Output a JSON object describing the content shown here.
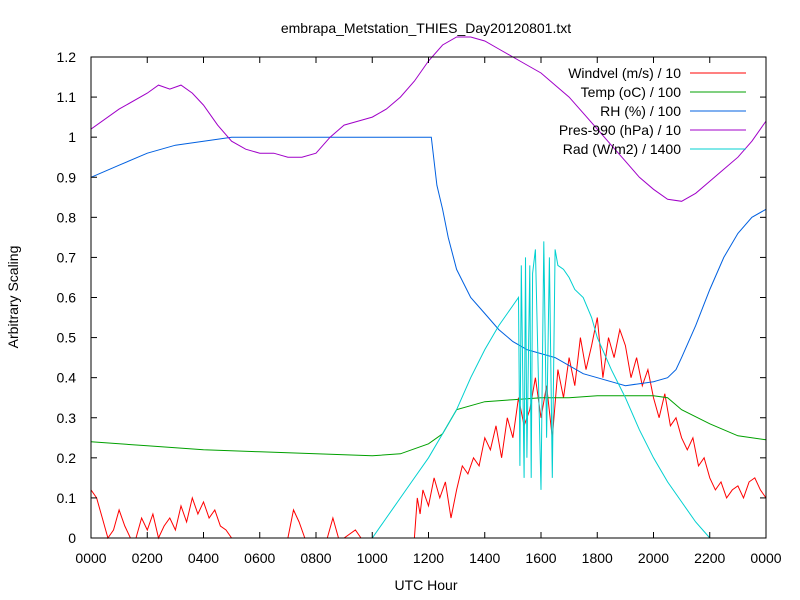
{
  "chart_data": {
    "type": "line",
    "title": "embrapa_Metstation_THIES_Day20120801.txt",
    "xlabel": "UTC Hour",
    "ylabel": "Arbitrary Scaling",
    "xlim": [
      0,
      2400
    ],
    "ylim": [
      0,
      1.2
    ],
    "grid": false,
    "legend_position": "top-right",
    "x_ticks": [
      "0000",
      "0200",
      "0400",
      "0600",
      "0800",
      "1000",
      "1200",
      "1400",
      "1600",
      "1800",
      "2000",
      "2200",
      "0000"
    ],
    "y_ticks": [
      "0",
      "0.1",
      "0.2",
      "0.3",
      "0.4",
      "0.5",
      "0.6",
      "0.7",
      "0.8",
      "0.9",
      "1",
      "1.1",
      "1.2"
    ],
    "series": [
      {
        "name": "Windvel (m/s) / 10",
        "color": "#ff0000",
        "x": [
          0,
          20,
          40,
          60,
          80,
          100,
          120,
          140,
          160,
          180,
          200,
          220,
          240,
          260,
          280,
          300,
          320,
          340,
          360,
          380,
          400,
          420,
          440,
          460,
          480,
          500,
          560,
          620,
          700,
          720,
          740,
          760,
          780,
          800,
          840,
          860,
          880,
          900,
          940,
          960,
          1000,
          1080,
          1150,
          1160,
          1170,
          1180,
          1200,
          1220,
          1240,
          1260,
          1280,
          1300,
          1320,
          1340,
          1360,
          1380,
          1400,
          1420,
          1440,
          1460,
          1480,
          1500,
          1520,
          1540,
          1560,
          1580,
          1600,
          1620,
          1640,
          1660,
          1680,
          1700,
          1720,
          1740,
          1760,
          1780,
          1800,
          1820,
          1840,
          1860,
          1880,
          1900,
          1920,
          1940,
          1960,
          1980,
          2000,
          2020,
          2040,
          2060,
          2080,
          2100,
          2120,
          2140,
          2160,
          2180,
          2200,
          2220,
          2240,
          2260,
          2280,
          2300,
          2320,
          2340,
          2360,
          2380,
          2400
        ],
        "y": [
          0.12,
          0.1,
          0.05,
          0.0,
          0.02,
          0.07,
          0.03,
          0.0,
          0.0,
          0.05,
          0.02,
          0.06,
          0.0,
          0.03,
          0.05,
          0.02,
          0.08,
          0.04,
          0.1,
          0.06,
          0.09,
          0.05,
          0.07,
          0.03,
          0.02,
          0.0,
          0.0,
          0.0,
          0.0,
          0.07,
          0.04,
          0.0,
          0.0,
          0.0,
          0.0,
          0.05,
          0.0,
          0.0,
          0.02,
          0.0,
          0.0,
          0.0,
          0.0,
          0.1,
          0.06,
          0.12,
          0.08,
          0.15,
          0.1,
          0.14,
          0.05,
          0.12,
          0.18,
          0.16,
          0.2,
          0.18,
          0.25,
          0.22,
          0.28,
          0.2,
          0.3,
          0.25,
          0.35,
          0.28,
          0.32,
          0.4,
          0.3,
          0.38,
          0.25,
          0.42,
          0.35,
          0.45,
          0.38,
          0.5,
          0.42,
          0.48,
          0.55,
          0.4,
          0.5,
          0.45,
          0.52,
          0.48,
          0.4,
          0.45,
          0.38,
          0.42,
          0.35,
          0.3,
          0.36,
          0.28,
          0.3,
          0.25,
          0.22,
          0.25,
          0.18,
          0.2,
          0.15,
          0.12,
          0.14,
          0.1,
          0.12,
          0.13,
          0.1,
          0.14,
          0.15,
          0.12,
          0.1
        ]
      },
      {
        "name": "Temp (oC) / 100",
        "color": "#00a000",
        "x": [
          0,
          200,
          400,
          600,
          800,
          1000,
          1100,
          1200,
          1250,
          1300,
          1400,
          1500,
          1600,
          1700,
          1800,
          1900,
          2000,
          2050,
          2100,
          2200,
          2300,
          2400
        ],
        "y": [
          0.24,
          0.23,
          0.22,
          0.215,
          0.21,
          0.205,
          0.21,
          0.235,
          0.26,
          0.32,
          0.34,
          0.345,
          0.35,
          0.35,
          0.355,
          0.355,
          0.355,
          0.35,
          0.32,
          0.285,
          0.255,
          0.245
        ]
      },
      {
        "name": "RH (%) / 100",
        "color": "#0060e0",
        "x": [
          0,
          100,
          200,
          300,
          400,
          500,
          600,
          800,
          1000,
          1200,
          1210,
          1230,
          1250,
          1270,
          1300,
          1350,
          1400,
          1450,
          1500,
          1550,
          1600,
          1650,
          1700,
          1750,
          1800,
          1850,
          1900,
          1950,
          2000,
          2050,
          2080,
          2100,
          2150,
          2200,
          2250,
          2300,
          2350,
          2400
        ],
        "y": [
          0.9,
          0.93,
          0.96,
          0.98,
          0.99,
          1.0,
          1.0,
          1.0,
          1.0,
          1.0,
          1.0,
          0.88,
          0.82,
          0.75,
          0.67,
          0.6,
          0.56,
          0.52,
          0.49,
          0.47,
          0.46,
          0.45,
          0.43,
          0.41,
          0.4,
          0.39,
          0.38,
          0.385,
          0.39,
          0.4,
          0.42,
          0.45,
          0.53,
          0.62,
          0.7,
          0.76,
          0.8,
          0.82
        ]
      },
      {
        "name": "Pres-990 (hPa) / 10",
        "color": "#a000c8",
        "x": [
          0,
          100,
          200,
          240,
          280,
          320,
          360,
          400,
          450,
          500,
          550,
          600,
          650,
          700,
          750,
          800,
          850,
          900,
          950,
          1000,
          1050,
          1100,
          1150,
          1200,
          1250,
          1300,
          1350,
          1400,
          1450,
          1500,
          1550,
          1600,
          1650,
          1700,
          1750,
          1800,
          1850,
          1900,
          1950,
          2000,
          2050,
          2100,
          2150,
          2200,
          2250,
          2300,
          2350,
          2400
        ],
        "y": [
          1.02,
          1.07,
          1.11,
          1.13,
          1.12,
          1.13,
          1.11,
          1.08,
          1.03,
          0.99,
          0.97,
          0.96,
          0.96,
          0.95,
          0.95,
          0.96,
          1.0,
          1.03,
          1.04,
          1.05,
          1.07,
          1.1,
          1.14,
          1.19,
          1.23,
          1.25,
          1.25,
          1.24,
          1.22,
          1.2,
          1.18,
          1.16,
          1.13,
          1.1,
          1.06,
          1.02,
          0.98,
          0.94,
          0.9,
          0.87,
          0.845,
          0.84,
          0.86,
          0.89,
          0.92,
          0.95,
          0.99,
          1.04
        ]
      },
      {
        "name": "Rad (W/m2) / 1400",
        "color": "#00d0d0",
        "x": [
          1000,
          1050,
          1100,
          1150,
          1200,
          1250,
          1300,
          1350,
          1400,
          1450,
          1500,
          1520,
          1525,
          1530,
          1540,
          1545,
          1550,
          1560,
          1565,
          1570,
          1580,
          1600,
          1610,
          1620,
          1630,
          1640,
          1650,
          1660,
          1680,
          1700,
          1720,
          1750,
          1780,
          1800,
          1850,
          1900,
          1950,
          2000,
          2050,
          2100,
          2150,
          2200
        ],
        "y": [
          0.0,
          0.05,
          0.1,
          0.15,
          0.2,
          0.26,
          0.32,
          0.4,
          0.47,
          0.53,
          0.58,
          0.6,
          0.18,
          0.68,
          0.15,
          0.7,
          0.2,
          0.68,
          0.15,
          0.66,
          0.72,
          0.12,
          0.74,
          0.25,
          0.7,
          0.15,
          0.72,
          0.68,
          0.67,
          0.65,
          0.62,
          0.6,
          0.55,
          0.5,
          0.42,
          0.35,
          0.27,
          0.2,
          0.14,
          0.09,
          0.04,
          0.0
        ]
      }
    ]
  }
}
